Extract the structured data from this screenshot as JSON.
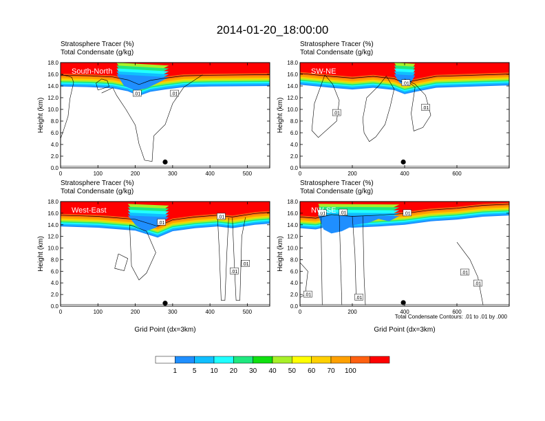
{
  "figure": {
    "title": "2014-01-20_18:00:00",
    "panel_header_line1": "Stratosphere Tracer   (%)",
    "panel_header_line2": "Total Condensate   (g/kg)",
    "contour_note": "Total Condensate Contours: .01 to .01 by .000"
  },
  "colorbar": {
    "labels": [
      "1",
      "5",
      "10",
      "20",
      "30",
      "40",
      "50",
      "60",
      "70",
      "100"
    ],
    "colors": [
      "#ffffff",
      "#1f8fff",
      "#10bfff",
      "#20ffff",
      "#1fe87f",
      "#10e010",
      "#a8f028",
      "#ffff00",
      "#ffd000",
      "#ffa000",
      "#ff6010",
      "#ff0000"
    ]
  },
  "chart_data": [
    {
      "type": "heatmap",
      "section_label": "South-North",
      "ylabel": "Height (km)",
      "xlabel": "",
      "xlim": [
        0,
        560
      ],
      "ylim": [
        0,
        18
      ],
      "xticks": [
        0,
        100,
        200,
        300,
        400,
        500
      ],
      "yticks": [
        "0.0",
        "2.0",
        "4.0",
        "6.0",
        "8.0",
        "10.0",
        "12.0",
        "14.0",
        "16.0",
        "18.0"
      ],
      "point_marker": {
        "x": 280,
        "y": 1.0
      },
      "contour_labels": [
        {
          "text": ".01",
          "x": 205,
          "y": 12.7
        },
        {
          "text": ".01",
          "x": 305,
          "y": 12.7
        }
      ],
      "tropopause": [
        [
          0,
          16.1
        ],
        [
          80,
          16.0
        ],
        [
          140,
          15.8
        ],
        [
          180,
          15.3
        ],
        [
          210,
          14.5
        ],
        [
          240,
          15.2
        ],
        [
          280,
          15.6
        ],
        [
          330,
          16.0
        ],
        [
          400,
          16.1
        ],
        [
          560,
          16.2
        ]
      ],
      "dip": [
        [
          150,
          16.0
        ],
        [
          170,
          14.0
        ],
        [
          200,
          13.2
        ],
        [
          230,
          13.6
        ],
        [
          260,
          14.5
        ],
        [
          290,
          15.5
        ]
      ],
      "contours": [
        [
          [
            110,
            12.8
          ],
          [
            140,
            13.7
          ],
          [
            150,
            12.4
          ],
          [
            175,
            10.0
          ],
          [
            200,
            7.3
          ],
          [
            210,
            4.1
          ],
          [
            225,
            1.3
          ],
          [
            245,
            1.1
          ],
          [
            248,
            4.0
          ],
          [
            250,
            5.5
          ],
          [
            280,
            7.4
          ],
          [
            300,
            11.0
          ],
          [
            330,
            13.8
          ],
          [
            380,
            15.9
          ]
        ],
        [
          [
            95,
            14.5
          ],
          [
            110,
            15.2
          ],
          [
            125,
            14.9
          ],
          [
            130,
            13.9
          ],
          [
            100,
            13.3
          ],
          [
            95,
            14.5
          ]
        ],
        [
          [
            0,
            16.0
          ],
          [
            30,
            15.5
          ],
          [
            35,
            14.6
          ],
          [
            25,
            11.8
          ],
          [
            20,
            8.8
          ],
          [
            10,
            6.8
          ],
          [
            0,
            5.0
          ]
        ]
      ]
    },
    {
      "type": "heatmap",
      "section_label": "SW-NE",
      "ylabel": "Height (km)",
      "xlabel": "",
      "xlim": [
        0,
        800
      ],
      "ylim": [
        0,
        18
      ],
      "xticks": [
        0,
        200,
        400,
        600
      ],
      "yticks": [
        "0.0",
        "2.0",
        "4.0",
        "6.0",
        "8.0",
        "10.0",
        "12.0",
        "14.0",
        "16.0",
        "18.0"
      ],
      "point_marker": {
        "x": 395,
        "y": 1.0
      },
      "contour_labels": [
        {
          "text": ".01",
          "x": 140,
          "y": 9.4
        },
        {
          "text": ".01",
          "x": 405,
          "y": 14.5
        },
        {
          "text": ".01",
          "x": 480,
          "y": 10.3
        }
      ],
      "tropopause": [
        [
          0,
          16.4
        ],
        [
          120,
          15.9
        ],
        [
          200,
          15.6
        ],
        [
          280,
          15.9
        ],
        [
          360,
          15.5
        ],
        [
          400,
          14.8
        ],
        [
          440,
          15.2
        ],
        [
          520,
          15.9
        ],
        [
          800,
          16.3
        ]
      ],
      "dip": [
        [
          360,
          16.0
        ],
        [
          380,
          14.6
        ],
        [
          400,
          14.0
        ],
        [
          420,
          14.3
        ],
        [
          440,
          15.8
        ]
      ],
      "contours": [
        [
          [
            330,
            15.7
          ],
          [
            360,
            13.5
          ],
          [
            345,
            10.5
          ],
          [
            325,
            7.4
          ],
          [
            290,
            5.3
          ],
          [
            265,
            4.5
          ],
          [
            245,
            6.0
          ],
          [
            240,
            8.4
          ],
          [
            255,
            12.0
          ],
          [
            300,
            14.0
          ],
          [
            330,
            15.7
          ]
        ],
        [
          [
            400,
            15.2
          ],
          [
            440,
            14.3
          ],
          [
            480,
            12.4
          ],
          [
            500,
            9.0
          ],
          [
            470,
            6.9
          ],
          [
            435,
            6.3
          ],
          [
            425,
            9.3
          ],
          [
            440,
            13.8
          ],
          [
            400,
            15.2
          ]
        ],
        [
          [
            95,
            15.9
          ],
          [
            125,
            14.3
          ],
          [
            150,
            11.5
          ],
          [
            140,
            8.0
          ],
          [
            70,
            5.2
          ],
          [
            45,
            6.4
          ],
          [
            55,
            11.0
          ],
          [
            95,
            15.9
          ]
        ]
      ]
    },
    {
      "type": "heatmap",
      "section_label": "West-East",
      "ylabel": "Height (km)",
      "xlabel": "Grid Point (dx=3km)",
      "xlim": [
        0,
        560
      ],
      "ylim": [
        0,
        18
      ],
      "xticks": [
        0,
        100,
        200,
        300,
        400,
        500
      ],
      "yticks": [
        "0.0",
        "2.0",
        "4.0",
        "6.0",
        "8.0",
        "10.0",
        "12.0",
        "14.0",
        "16.0",
        "18.0"
      ],
      "point_marker": {
        "x": 280,
        "y": 0.5
      },
      "contour_labels": [
        {
          "text": ".01",
          "x": 270,
          "y": 14.4
        },
        {
          "text": ".01",
          "x": 430,
          "y": 15.4
        },
        {
          "text": ".01",
          "x": 465,
          "y": 6.0
        },
        {
          "text": ".01",
          "x": 495,
          "y": 7.3
        }
      ],
      "tropopause": [
        [
          0,
          15.9
        ],
        [
          100,
          15.7
        ],
        [
          200,
          15.2
        ],
        [
          260,
          14.0
        ],
        [
          300,
          15.1
        ],
        [
          360,
          15.6
        ],
        [
          420,
          15.9
        ],
        [
          460,
          15.6
        ],
        [
          520,
          16.2
        ],
        [
          560,
          16.4
        ]
      ],
      "dip": [
        [
          180,
          15.6
        ],
        [
          200,
          14.0
        ],
        [
          225,
          12.8
        ],
        [
          255,
          13.5
        ],
        [
          290,
          15.3
        ]
      ],
      "contours": [
        [
          [
            420,
            15.6
          ],
          [
            425,
            9.5
          ],
          [
            430,
            1.0
          ],
          [
            440,
            1.0
          ],
          [
            445,
            9.0
          ],
          [
            450,
            15.2
          ]
        ],
        [
          [
            460,
            15.2
          ],
          [
            465,
            7.6
          ],
          [
            470,
            1.0
          ],
          [
            480,
            1.0
          ],
          [
            485,
            12.0
          ],
          [
            495,
            15.3
          ]
        ],
        [
          [
            185,
            14.0
          ],
          [
            230,
            12.9
          ],
          [
            255,
            9.2
          ],
          [
            230,
            5.7
          ],
          [
            210,
            4.5
          ],
          [
            190,
            6.9
          ],
          [
            185,
            14.0
          ]
        ],
        [
          [
            155,
            9.0
          ],
          [
            180,
            8.2
          ],
          [
            170,
            6.1
          ],
          [
            145,
            6.5
          ],
          [
            155,
            9.0
          ]
        ]
      ]
    },
    {
      "type": "heatmap",
      "section_label": "NW-SE",
      "ylabel": "Height (km)",
      "xlabel": "Grid Point (dx=3km)",
      "xlim": [
        0,
        800
      ],
      "ylim": [
        0,
        18
      ],
      "xticks": [
        0,
        200,
        400,
        600
      ],
      "yticks": [
        "0.0",
        "2.0",
        "4.0",
        "6.0",
        "8.0",
        "10.0",
        "12.0",
        "14.0",
        "16.0",
        "18.0"
      ],
      "point_marker": {
        "x": 395,
        "y": 0.6
      },
      "contour_labels": [
        {
          "text": ".01",
          "x": 85,
          "y": 16.0
        },
        {
          "text": ".01",
          "x": 165,
          "y": 16.1
        },
        {
          "text": ".01",
          "x": 410,
          "y": 16.0
        },
        {
          "text": ".01",
          "x": 30,
          "y": 2.0
        },
        {
          "text": ".01",
          "x": 225,
          "y": 1.5
        },
        {
          "text": ".01",
          "x": 630,
          "y": 5.8
        },
        {
          "text": ".01",
          "x": 680,
          "y": 3.9
        }
      ],
      "tropopause": [
        [
          0,
          15.6
        ],
        [
          60,
          15.4
        ],
        [
          120,
          16.0
        ],
        [
          200,
          15.7
        ],
        [
          300,
          15.9
        ],
        [
          400,
          16.2
        ],
        [
          500,
          16.8
        ],
        [
          600,
          17.1
        ],
        [
          700,
          17.6
        ],
        [
          800,
          17.8
        ]
      ],
      "dip": [
        [
          70,
          15.6
        ],
        [
          90,
          13.2
        ],
        [
          120,
          12.5
        ],
        [
          160,
          12.9
        ],
        [
          210,
          14.0
        ],
        [
          260,
          14.3
        ],
        [
          300,
          15.0
        ],
        [
          340,
          14.6
        ],
        [
          380,
          15.5
        ]
      ],
      "contours": [
        [
          [
            80,
            15.2
          ],
          [
            85,
            0.2
          ]
        ],
        [
          [
            150,
            15.8
          ],
          [
            160,
            0.2
          ]
        ],
        [
          [
            200,
            15.5
          ],
          [
            210,
            9.0
          ],
          [
            215,
            1.0
          ]
        ],
        [
          [
            240,
            15.5
          ],
          [
            245,
            5.0
          ],
          [
            250,
            0.2
          ]
        ],
        [
          [
            600,
            11.0
          ],
          [
            650,
            8.0
          ],
          [
            680,
            5.0
          ],
          [
            700,
            0.2
          ]
        ],
        [
          [
            0,
            7.5
          ],
          [
            30,
            6.0
          ],
          [
            20,
            2.0
          ],
          [
            0,
            1.5
          ]
        ]
      ]
    }
  ]
}
